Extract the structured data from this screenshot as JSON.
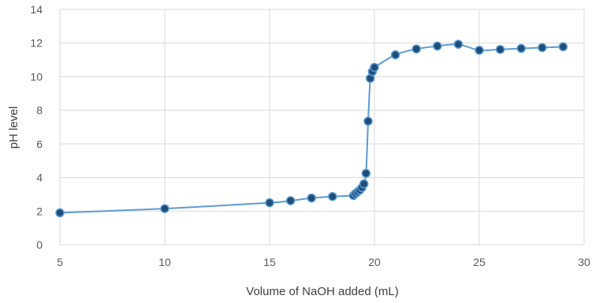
{
  "chart_data": {
    "type": "scatter",
    "title": "",
    "xlabel": "Volume of NaOH added (mL)",
    "ylabel": "pH level",
    "xlim": [
      5,
      30
    ],
    "ylim": [
      0,
      14
    ],
    "xticks": [
      5,
      10,
      15,
      20,
      25,
      30
    ],
    "yticks": [
      0,
      2,
      4,
      6,
      8,
      10,
      12,
      14
    ],
    "grid": true,
    "legend": "none",
    "line_style": "smooth line with markers",
    "colors": {
      "line": "#5b9bd5",
      "marker_fill": "#1f4e79",
      "marker_edge": "#5b9bd5",
      "grid": "#d9d9d9"
    },
    "series": [
      {
        "x": [
          5,
          10,
          15,
          16,
          17,
          18,
          19,
          19.1,
          19.2,
          19.3,
          19.4,
          19.5,
          19.6,
          19.7,
          19.8,
          19.9,
          20,
          21,
          22,
          23,
          24,
          25,
          26,
          27,
          28,
          29
        ],
        "y": [
          1.9,
          2.15,
          2.5,
          2.62,
          2.78,
          2.87,
          2.93,
          3.05,
          3.15,
          3.25,
          3.4,
          3.62,
          4.25,
          7.35,
          9.9,
          10.3,
          10.55,
          11.3,
          11.65,
          11.82,
          11.93,
          11.57,
          11.62,
          11.68,
          11.73,
          11.78
        ]
      }
    ]
  }
}
